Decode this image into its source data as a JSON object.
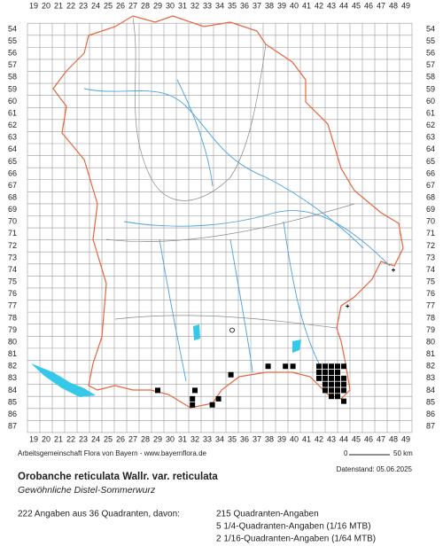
{
  "map": {
    "col_labels": [
      19,
      20,
      21,
      22,
      23,
      24,
      25,
      26,
      27,
      28,
      29,
      30,
      31,
      32,
      33,
      34,
      35,
      36,
      37,
      38,
      39,
      40,
      41,
      42,
      43,
      44,
      45,
      46,
      47,
      48,
      49
    ],
    "row_labels": [
      54,
      55,
      56,
      57,
      58,
      59,
      60,
      61,
      62,
      63,
      64,
      65,
      66,
      67,
      68,
      69,
      70,
      71,
      72,
      73,
      74,
      75,
      76,
      77,
      78,
      79,
      80,
      81,
      82,
      83,
      84,
      85,
      86,
      87
    ],
    "occurrences": [
      [
        29,
        84
      ],
      [
        32,
        84
      ],
      [
        31.8,
        84.7
      ],
      [
        31.8,
        85.2
      ],
      [
        33.4,
        85.2
      ],
      [
        33.9,
        84.7
      ],
      [
        34.9,
        82.7
      ],
      [
        37.9,
        82
      ],
      [
        39.3,
        82
      ],
      [
        39.9,
        82
      ],
      [
        42,
        82
      ],
      [
        42.5,
        82
      ],
      [
        43,
        82
      ],
      [
        43.5,
        82
      ],
      [
        44,
        82
      ],
      [
        42,
        82.5
      ],
      [
        42.5,
        82.5
      ],
      [
        43,
        82.5
      ],
      [
        43.5,
        82.5
      ],
      [
        42,
        83
      ],
      [
        42.5,
        83
      ],
      [
        43,
        83
      ],
      [
        43.5,
        83
      ],
      [
        44,
        83
      ],
      [
        42.5,
        83.5
      ],
      [
        43,
        83.5
      ],
      [
        43.5,
        83.5
      ],
      [
        44,
        83.5
      ],
      [
        42.5,
        84
      ],
      [
        43,
        84
      ],
      [
        43.5,
        84
      ],
      [
        44,
        84
      ],
      [
        43,
        84.5
      ],
      [
        43.5,
        84.5
      ],
      [
        44,
        84.9
      ]
    ],
    "minor_records": [
      [
        48,
        74
      ],
      [
        44.3,
        77
      ]
    ],
    "open_records": [
      [
        35,
        79
      ]
    ]
  },
  "footer": {
    "credit": "Arbeitsgemeinschaft Flora von Bayern - www.bayernflora.de",
    "scale_start": "0",
    "scale_end": "50 km",
    "date": "Datenstand: 05.06.2025",
    "title": "Orobanche reticulata Wallr. var. reticulata",
    "subtitle": "Gewöhnliche Distel-Sommerwurz",
    "summary": "222 Angaben aus 36 Quadranten, davon:",
    "counts": [
      "215 Quadranten-Angaben",
      "5 1/4-Quadranten-Angaben (1/16 MTB)",
      "2 1/16-Quadranten-Angaben (1/64 MTB)"
    ]
  }
}
